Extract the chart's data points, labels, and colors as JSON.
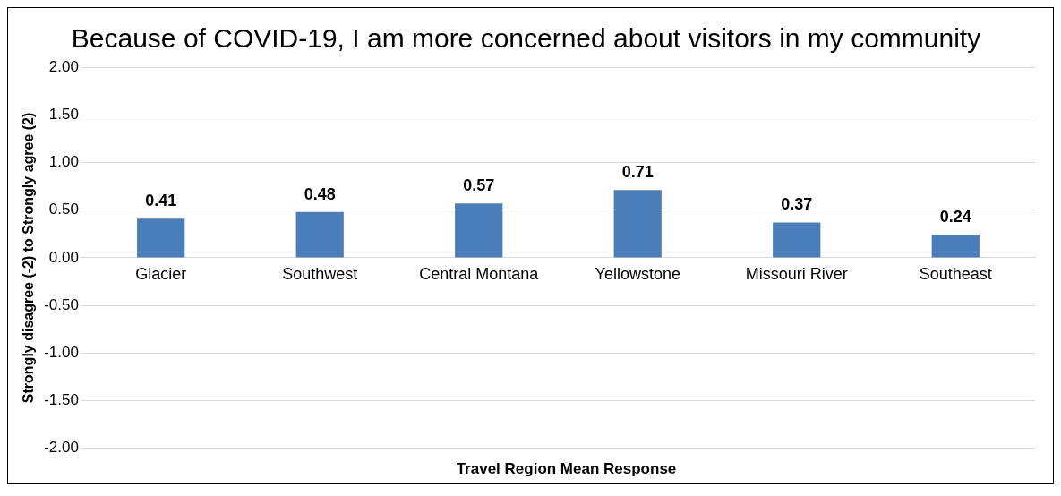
{
  "chart_data": {
    "type": "bar",
    "title": "Because of COVID-19, I am more concerned about visitors in my community",
    "xlabel": "Travel Region Mean Response",
    "ylabel": "Strongly disagree (-2) to Strongly agree (2)",
    "categories": [
      "Glacier",
      "Southwest",
      "Central Montana",
      "Yellowstone",
      "Missouri River",
      "Southeast"
    ],
    "values": [
      0.41,
      0.48,
      0.57,
      0.71,
      0.37,
      0.24
    ],
    "color": "#4a7ebb",
    "ylim": [
      -2,
      2
    ],
    "yticks": [
      {
        "value": -2,
        "label": "-2.00"
      },
      {
        "value": -1.5,
        "label": "-1.50"
      },
      {
        "value": -1,
        "label": "-1.00"
      },
      {
        "value": -0.5,
        "label": "-0.50"
      },
      {
        "value": 0,
        "label": "0.00"
      },
      {
        "value": 0.5,
        "label": "0.50"
      },
      {
        "value": 1,
        "label": "1.00"
      },
      {
        "value": 1.5,
        "label": "1.50"
      },
      {
        "value": 2,
        "label": "2.00"
      }
    ],
    "grid": "y",
    "data_labels": true,
    "legend": false
  }
}
